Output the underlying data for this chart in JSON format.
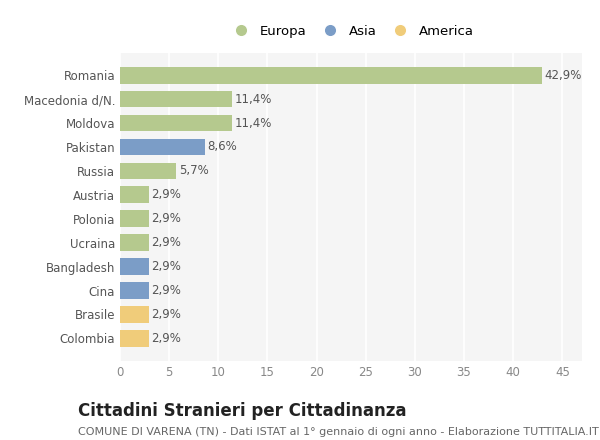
{
  "categories": [
    "Romania",
    "Macedonia d/N.",
    "Moldova",
    "Pakistan",
    "Russia",
    "Austria",
    "Polonia",
    "Ucraina",
    "Bangladesh",
    "Cina",
    "Brasile",
    "Colombia"
  ],
  "values": [
    42.9,
    11.4,
    11.4,
    8.6,
    5.7,
    2.9,
    2.9,
    2.9,
    2.9,
    2.9,
    2.9,
    2.9
  ],
  "labels": [
    "42,9%",
    "11,4%",
    "11,4%",
    "8,6%",
    "5,7%",
    "2,9%",
    "2,9%",
    "2,9%",
    "2,9%",
    "2,9%",
    "2,9%",
    "2,9%"
  ],
  "continents": [
    "Europa",
    "Europa",
    "Europa",
    "Asia",
    "Europa",
    "Europa",
    "Europa",
    "Europa",
    "Asia",
    "Asia",
    "America",
    "America"
  ],
  "colors": {
    "Europa": "#b5c98e",
    "Asia": "#7b9dc7",
    "America": "#f0cc7a"
  },
  "legend_labels": [
    "Europa",
    "Asia",
    "America"
  ],
  "title": "Cittadini Stranieri per Cittadinanza",
  "subtitle": "COMUNE DI VARENA (TN) - Dati ISTAT al 1° gennaio di ogni anno - Elaborazione TUTTITALIA.IT",
  "xlim": [
    0,
    47
  ],
  "xticks": [
    0,
    5,
    10,
    15,
    20,
    25,
    30,
    35,
    40,
    45
  ],
  "background_color": "#ffffff",
  "plot_bg_color": "#f5f5f5",
  "grid_color": "#ffffff",
  "bar_height": 0.7,
  "title_fontsize": 12,
  "subtitle_fontsize": 8,
  "tick_fontsize": 8.5,
  "label_fontsize": 8.5
}
